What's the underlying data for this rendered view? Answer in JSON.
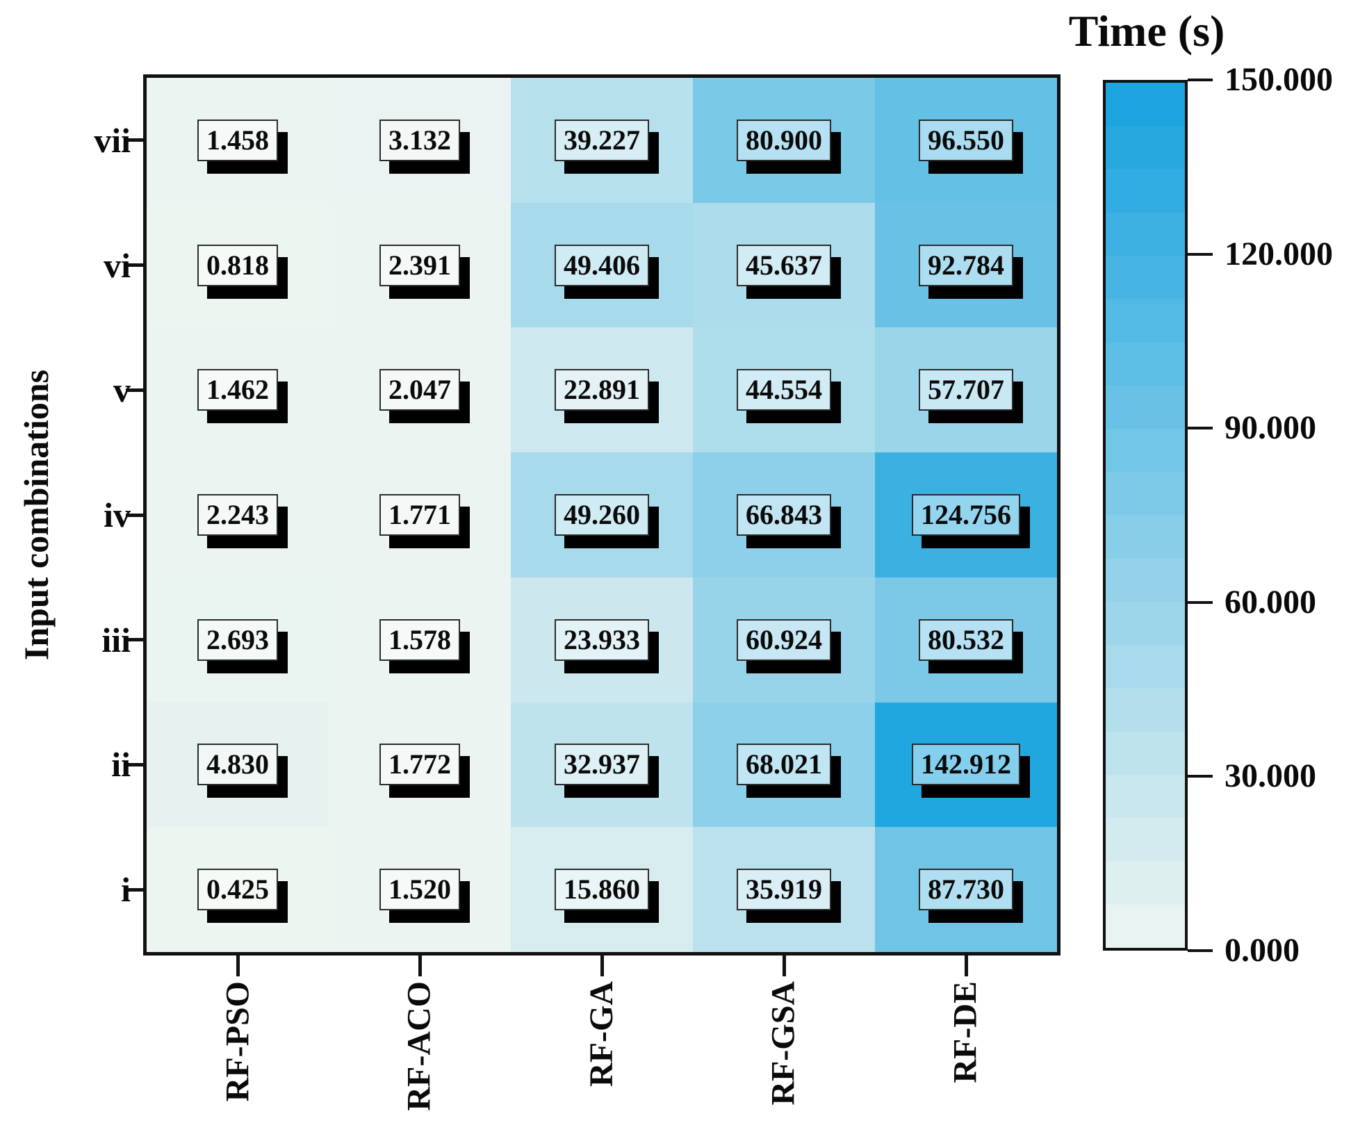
{
  "chart_data": {
    "type": "heatmap",
    "colorbar_title": "Time (s)",
    "ylabel": "Input combinations",
    "xlabel": "",
    "x_categories": [
      "RF-PSO",
      "RF-ACO",
      "RF-GA",
      "RF-GSA",
      "RF-DE"
    ],
    "y_categories": [
      "vii",
      "vi",
      "v",
      "iv",
      "iii",
      "ii",
      "i"
    ],
    "rows": [
      {
        "label": "vii",
        "values": [
          1.458,
          3.132,
          39.227,
          80.9,
          96.55
        ],
        "labels": [
          "1.458",
          "3.132",
          "39.227",
          "80.900",
          "96.550"
        ]
      },
      {
        "label": "vi",
        "values": [
          0.818,
          2.391,
          49.406,
          45.637,
          92.784
        ],
        "labels": [
          "0.818",
          "2.391",
          "49.406",
          "45.637",
          "92.784"
        ]
      },
      {
        "label": "v",
        "values": [
          1.462,
          2.047,
          22.891,
          44.554,
          57.707
        ],
        "labels": [
          "1.462",
          "2.047",
          "22.891",
          "44.554",
          "57.707"
        ]
      },
      {
        "label": "iv",
        "values": [
          2.243,
          1.771,
          49.26,
          66.843,
          124.756
        ],
        "labels": [
          "2.243",
          "1.771",
          "49.260",
          "66.843",
          "124.756"
        ]
      },
      {
        "label": "iii",
        "values": [
          2.693,
          1.578,
          23.933,
          60.924,
          80.532
        ],
        "labels": [
          "2.693",
          "1.578",
          "23.933",
          "60.924",
          "80.532"
        ]
      },
      {
        "label": "ii",
        "values": [
          4.83,
          1.772,
          32.937,
          68.021,
          142.912
        ],
        "labels": [
          "4.830",
          "1.772",
          "32.937",
          "68.021",
          "142.912"
        ]
      },
      {
        "label": "i",
        "values": [
          0.425,
          1.52,
          15.86,
          35.919,
          87.73
        ],
        "labels": [
          "0.425",
          "1.520",
          "15.860",
          "35.919",
          "87.730"
        ]
      }
    ],
    "vmin": 0,
    "vmax": 150,
    "colormap": {
      "low": "#eef5f1",
      "high": "#17a3df",
      "label_box_white_mix": 0.45,
      "colorbar_bands": 20
    },
    "colorbar_ticks": [
      {
        "value": 0,
        "label": "0.000"
      },
      {
        "value": 30,
        "label": "30.000"
      },
      {
        "value": 60,
        "label": "60.000"
      },
      {
        "value": 90,
        "label": "90.000"
      },
      {
        "value": 120,
        "label": "120.000"
      },
      {
        "value": 150,
        "label": "150.000"
      }
    ],
    "legend_position": "right",
    "grid": false
  }
}
